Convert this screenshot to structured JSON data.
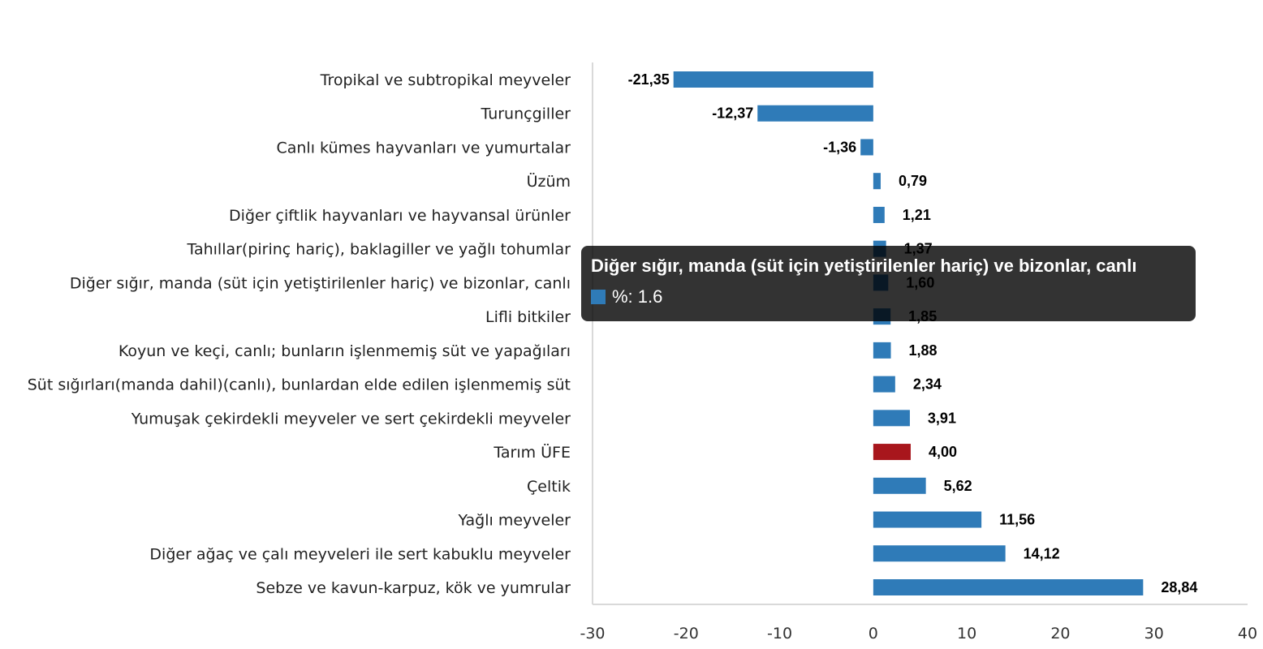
{
  "chart_data": {
    "type": "bar",
    "orientation": "horizontal",
    "title": "",
    "xlabel": "",
    "ylabel": "",
    "xlim": [
      -30,
      40
    ],
    "xticks": [
      "-30",
      "-20",
      "-10",
      "0",
      "10",
      "20",
      "30",
      "40"
    ],
    "grid": false,
    "categories": [
      "Tropikal ve subtropikal meyveler",
      "Turunçgiller",
      "Canlı kümes hayvanları ve yumurtalar",
      "Üzüm",
      "Diğer çiftlik hayvanları ve hayvansal ürünler",
      "Tahıllar(pirinç hariç), baklagiller ve yağlı tohumlar",
      "Diğer sığır, manda (süt için yetiştirilenler hariç) ve bizonlar, canlı",
      "Lifli bitkiler",
      "Koyun ve keçi, canlı; bunların işlenmemiş süt ve yapağıları",
      "Süt sığırları(manda dahil)(canlı), bunlardan elde edilen işlenmemiş süt",
      "Yumuşak çekirdekli meyveler ve sert çekirdekli meyveler",
      "Tarım ÜFE",
      "Çeltik",
      "Yağlı meyveler",
      "Diğer ağaç ve çalı meyveleri ile sert kabuklu meyveler",
      "Sebze ve kavun-karpuz, kök ve yumrular"
    ],
    "values": [
      -21.35,
      -12.37,
      -1.36,
      0.79,
      1.21,
      1.37,
      1.6,
      1.85,
      1.88,
      2.34,
      3.91,
      4.0,
      5.62,
      11.56,
      14.12,
      28.84
    ],
    "labels": [
      "-21,35",
      "-12,37",
      "-1,36",
      "0,79",
      "1,21",
      "1,37",
      "1,60",
      "1,85",
      "1,88",
      "2,34",
      "3,91",
      "4,00",
      "5,62",
      "11,56",
      "14,12",
      "28,84"
    ],
    "highlight_index": 11,
    "colors": {
      "bar": "#2f7bb8",
      "highlight": "#a8161c"
    },
    "series": [
      {
        "name": "%"
      }
    ]
  },
  "tooltip": {
    "title": "Diğer sığır, manda (süt için yetiştirilenler hariç) ve bizonlar, canlı",
    "value_text": "%: 1.6"
  }
}
